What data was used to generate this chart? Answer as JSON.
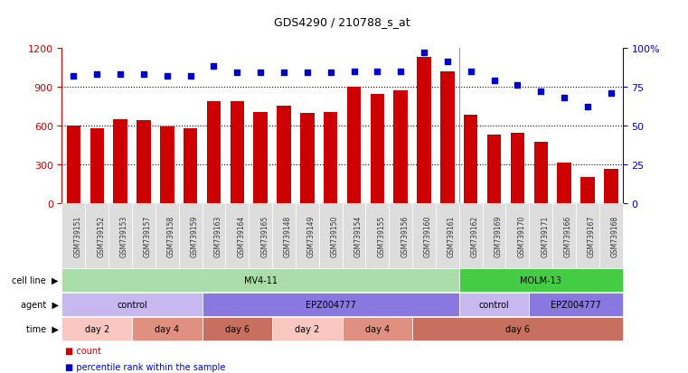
{
  "title": "GDS4290 / 210788_s_at",
  "samples": [
    "GSM739151",
    "GSM739152",
    "GSM739153",
    "GSM739157",
    "GSM739158",
    "GSM739159",
    "GSM739163",
    "GSM739164",
    "GSM739165",
    "GSM739148",
    "GSM739149",
    "GSM739150",
    "GSM739154",
    "GSM739155",
    "GSM739156",
    "GSM739160",
    "GSM739161",
    "GSM739162",
    "GSM739169",
    "GSM739170",
    "GSM739171",
    "GSM739166",
    "GSM739167",
    "GSM739168"
  ],
  "counts": [
    600,
    575,
    650,
    640,
    590,
    580,
    790,
    790,
    700,
    755,
    695,
    700,
    900,
    840,
    870,
    1130,
    1020,
    680,
    530,
    545,
    470,
    310,
    200,
    260
  ],
  "percentile": [
    82,
    83,
    83,
    83,
    82,
    82,
    88,
    84,
    84,
    84,
    84,
    84,
    85,
    85,
    85,
    97,
    91,
    85,
    79,
    76,
    72,
    68,
    62,
    71
  ],
  "bar_color": "#cc0000",
  "dot_color": "#0000cc",
  "left_ylim": [
    0,
    1200
  ],
  "left_yticks": [
    0,
    300,
    600,
    900,
    1200
  ],
  "right_ylim": [
    0,
    100
  ],
  "right_yticks": [
    0,
    25,
    50,
    75,
    100
  ],
  "right_yticklabels": [
    "0",
    "25",
    "50",
    "75",
    "100%"
  ],
  "separator_sample_idx": 17,
  "cell_line_segments": [
    {
      "text": "MV4-11",
      "start": 0,
      "end": 17,
      "color": "#aaddaa"
    },
    {
      "text": "MOLM-13",
      "start": 17,
      "end": 24,
      "color": "#44cc44"
    }
  ],
  "agent_segments": [
    {
      "text": "control",
      "start": 0,
      "end": 6,
      "color": "#c8b8f0"
    },
    {
      "text": "EPZ004777",
      "start": 6,
      "end": 17,
      "color": "#8878e0"
    },
    {
      "text": "control",
      "start": 17,
      "end": 20,
      "color": "#c8b8f0"
    },
    {
      "text": "EPZ004777",
      "start": 20,
      "end": 24,
      "color": "#8878e0"
    }
  ],
  "time_segments": [
    {
      "text": "day 2",
      "start": 0,
      "end": 3,
      "color": "#f8c8c0"
    },
    {
      "text": "day 4",
      "start": 3,
      "end": 6,
      "color": "#e09080"
    },
    {
      "text": "day 6",
      "start": 6,
      "end": 9,
      "color": "#c87060"
    },
    {
      "text": "day 2",
      "start": 9,
      "end": 12,
      "color": "#f8c8c0"
    },
    {
      "text": "day 4",
      "start": 12,
      "end": 15,
      "color": "#e09080"
    },
    {
      "text": "day 6",
      "start": 15,
      "end": 24,
      "color": "#c87060"
    }
  ],
  "row_labels": [
    "cell line",
    "agent",
    "time"
  ],
  "legend_items": [
    {
      "color": "#cc0000",
      "label": "count"
    },
    {
      "color": "#0000cc",
      "label": "percentile rank within the sample"
    }
  ],
  "xtick_bg_color": "#dddddd"
}
